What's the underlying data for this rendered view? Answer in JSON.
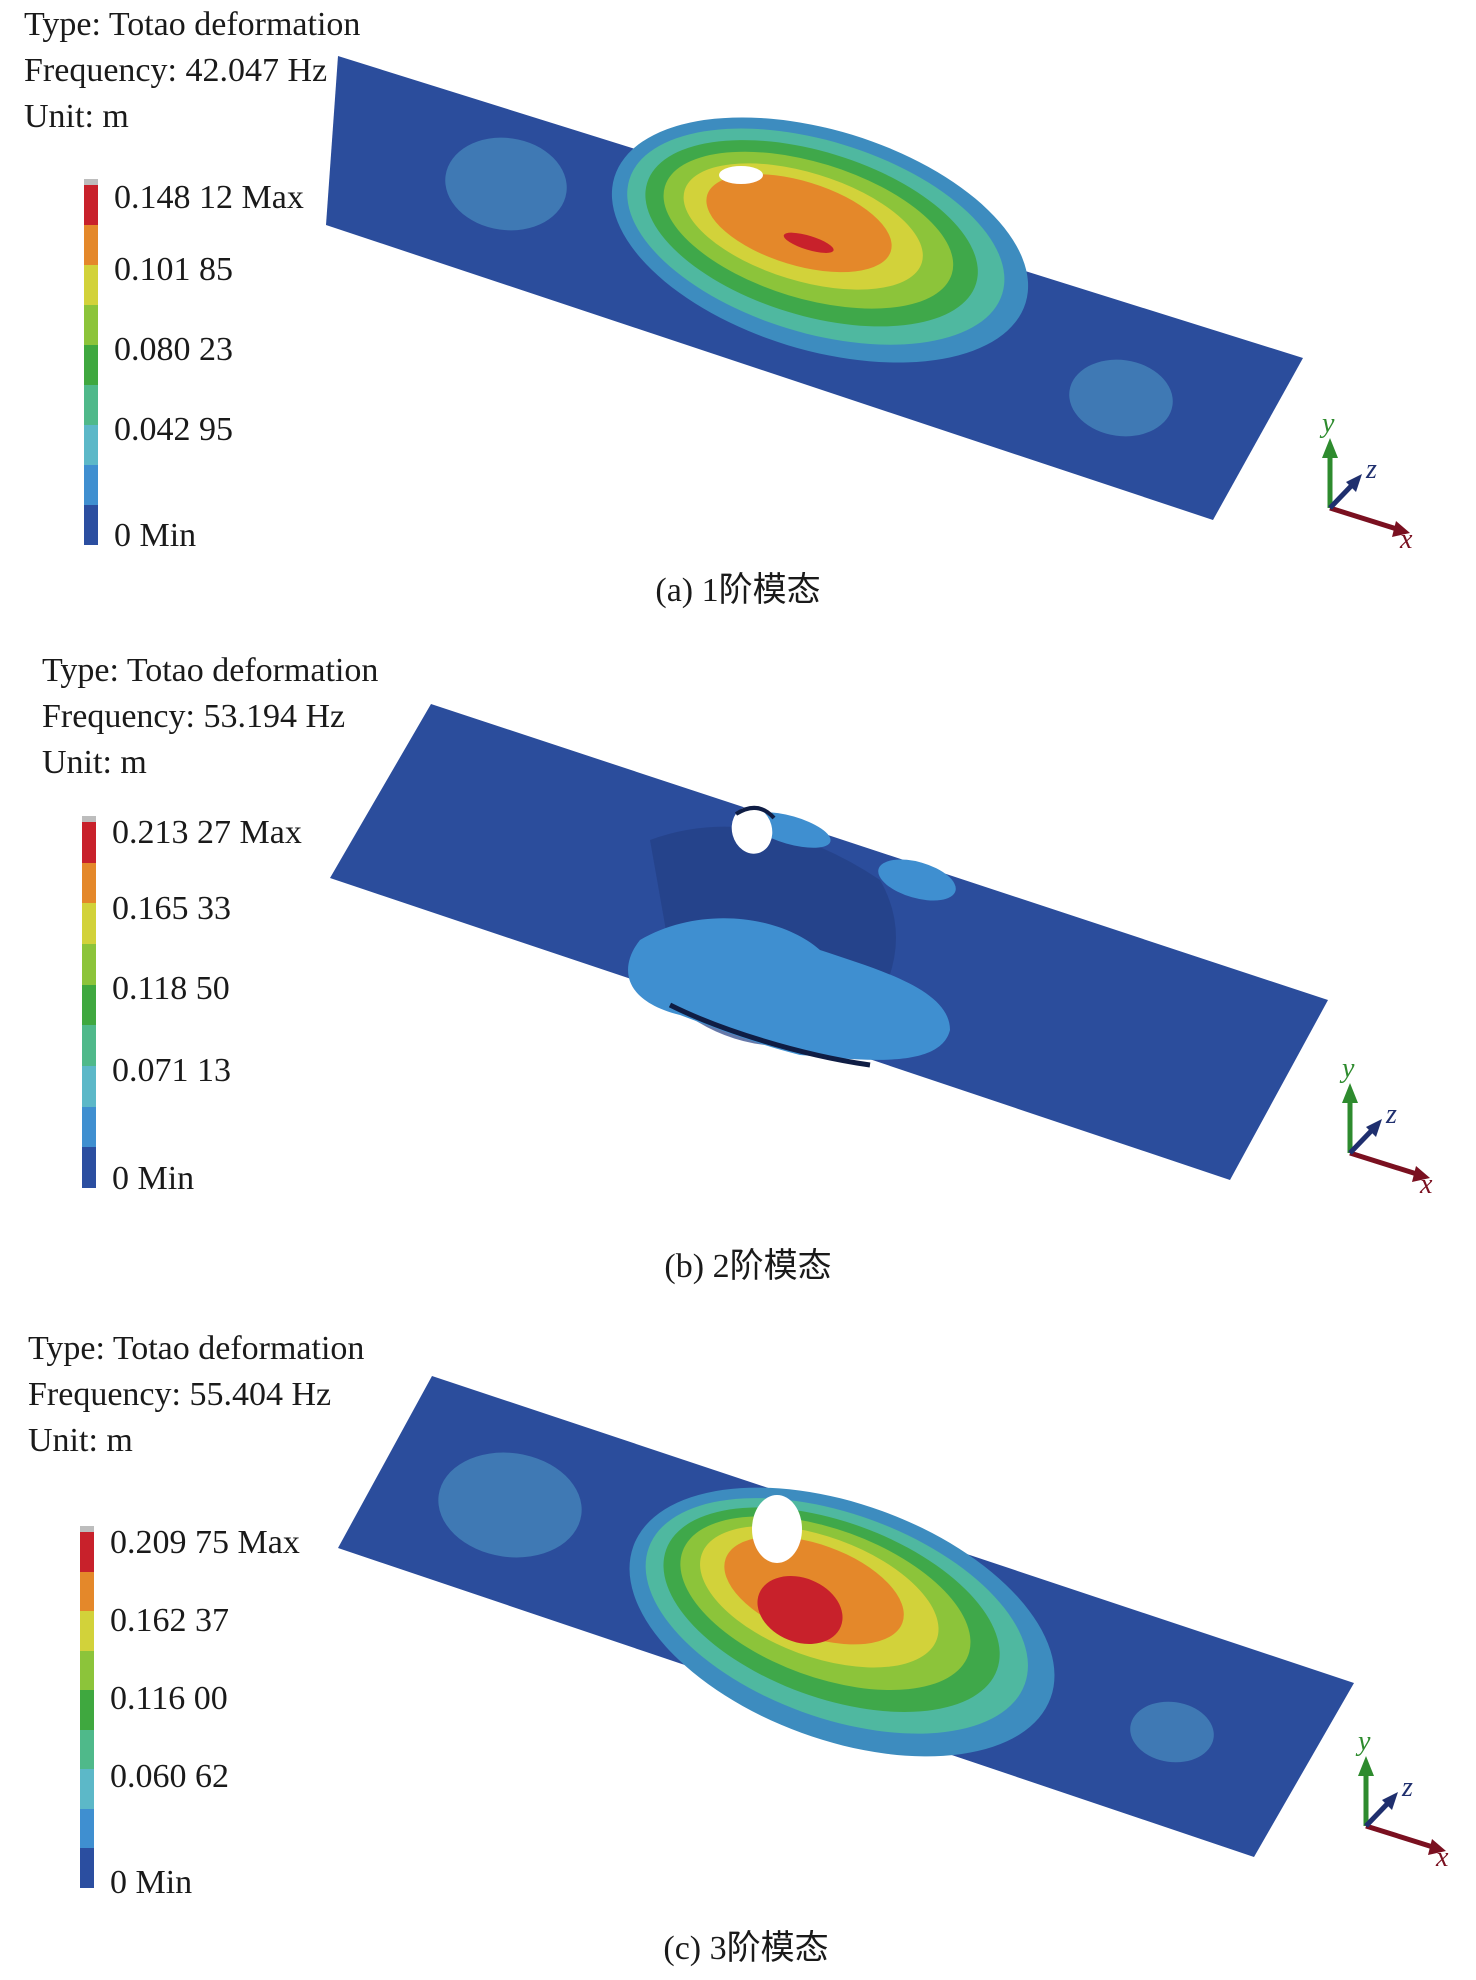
{
  "panels": [
    {
      "type_line": "Type: Totao deformation",
      "frequency_line": "Frequency: 42.047 Hz",
      "unit_line": "Unit: m",
      "legend_labels": [
        "0.148 12 Max",
        "0.101 85",
        "0.080 23",
        "0.042 95",
        "0 Min"
      ],
      "caption": "(a) 1阶模态"
    },
    {
      "type_line": "Type: Totao deformation",
      "frequency_line": "Frequency: 53.194 Hz",
      "unit_line": "Unit: m",
      "legend_labels": [
        "0.213 27 Max",
        "0.165 33",
        "0.118 50",
        "0.071 13",
        "0 Min"
      ],
      "caption": "(b) 2阶模态"
    },
    {
      "type_line": "Type: Totao deformation",
      "frequency_line": "Frequency: 55.404 Hz",
      "unit_line": "Unit: m",
      "legend_labels": [
        "0.209 75 Max",
        "0.162 37",
        "0.116 00",
        "0.060 62",
        "0 Min"
      ],
      "caption": "(c) 3阶模态"
    }
  ],
  "axes": {
    "x": "x",
    "y": "y",
    "z": "z"
  },
  "colors": {
    "scale": [
      "#c8212b",
      "#e4882a",
      "#d2d23a",
      "#8cc43a",
      "#3fa83f",
      "#4fb98a",
      "#5cb8c8",
      "#3f8fd0",
      "#2b4ea0"
    ],
    "plate": "#2a4d9c",
    "x_axis": "#7a1020",
    "y_axis": "#2e8b2e",
    "z_axis": "#1f2f6e"
  }
}
